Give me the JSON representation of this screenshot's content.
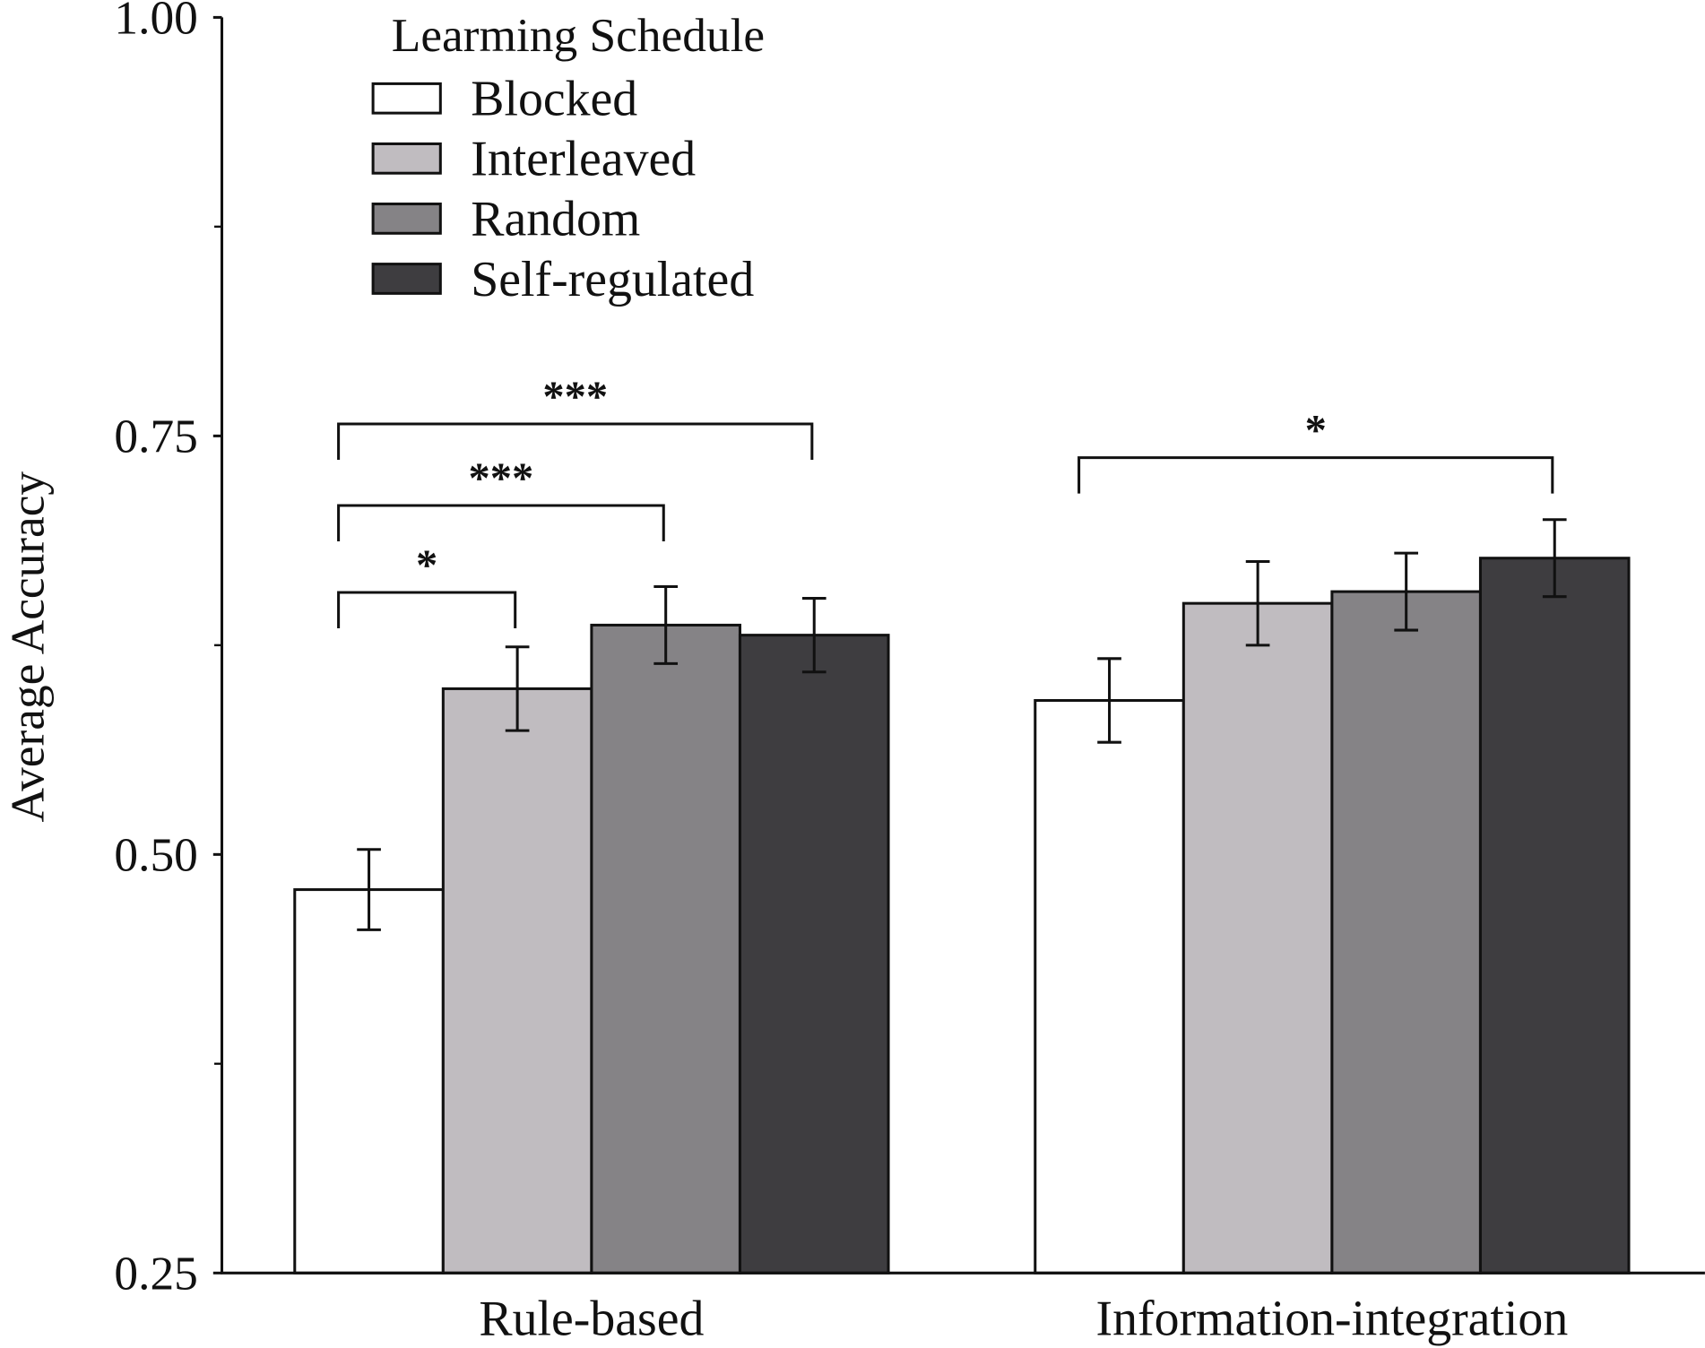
{
  "chart_data": {
    "type": "bar",
    "title": "",
    "xlabel": "",
    "ylabel": "Average Accuracy",
    "ylim": [
      0.25,
      1.0
    ],
    "yticks": [
      0.25,
      0.5,
      0.75,
      1.0
    ],
    "ytick_labels": [
      "0.25",
      "0.50",
      "0.75",
      "1.00"
    ],
    "yminor_ticks": [
      0.375,
      0.625,
      0.875
    ],
    "grid": false,
    "categories": [
      "Rule-based",
      "Information-integration"
    ],
    "legend": {
      "title": "Learming Schedule",
      "placement": "top-left"
    },
    "series": [
      {
        "name": "Blocked",
        "color": "#ffffff",
        "values": [
          0.479,
          0.592
        ],
        "errors": [
          0.024,
          0.025
        ]
      },
      {
        "name": "Interleaved",
        "color": "#c0bcc0",
        "values": [
          0.599,
          0.65
        ],
        "errors": [
          0.025,
          0.025
        ]
      },
      {
        "name": "Random",
        "color": "#858386",
        "values": [
          0.637,
          0.657
        ],
        "errors": [
          0.023,
          0.023
        ]
      },
      {
        "name": "Self-regulated",
        "color": "#3e3d40",
        "values": [
          0.631,
          0.677
        ],
        "errors": [
          0.022,
          0.023
        ]
      }
    ],
    "significance": [
      {
        "category": 0,
        "from": 0,
        "to": 1,
        "label": "*",
        "level": 1
      },
      {
        "category": 0,
        "from": 0,
        "to": 2,
        "label": "***",
        "level": 2
      },
      {
        "category": 0,
        "from": 0,
        "to": 3,
        "label": "***",
        "level": 3
      },
      {
        "category": 1,
        "from": 0,
        "to": 3,
        "label": "*",
        "level": 1
      }
    ]
  }
}
